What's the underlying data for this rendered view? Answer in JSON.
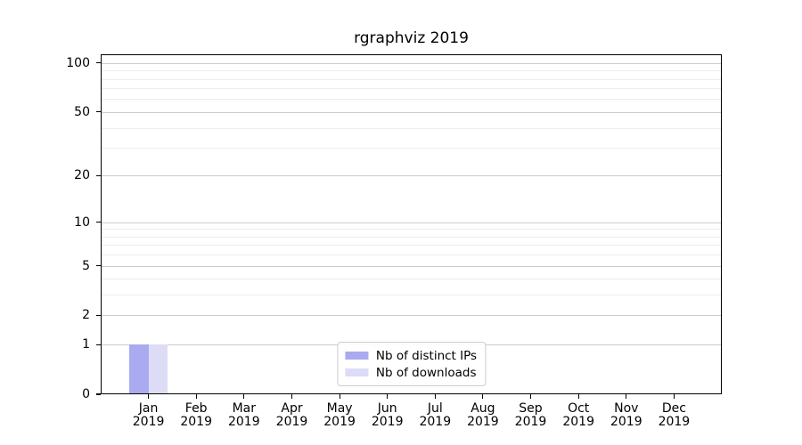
{
  "chart_data": {
    "type": "bar",
    "title": "rgraphviz 2019",
    "categories": [
      "Jan",
      "Feb",
      "Mar",
      "Apr",
      "May",
      "Jun",
      "Jul",
      "Aug",
      "Sep",
      "Oct",
      "Nov",
      "Dec"
    ],
    "category_year": "2019",
    "series": [
      {
        "name": "Nb of distinct IPs",
        "color": "#aaaaf0",
        "values": [
          1,
          0,
          0,
          0,
          0,
          0,
          0,
          0,
          0,
          0,
          0,
          0
        ]
      },
      {
        "name": "Nb of downloads",
        "color": "#dcdcf6",
        "values": [
          1,
          0,
          0,
          0,
          0,
          0,
          0,
          0,
          0,
          0,
          0,
          0
        ]
      }
    ],
    "xlabel": "",
    "ylabel": "",
    "yscale": "log1p",
    "ylim": [
      0,
      113
    ],
    "y_major_ticks": [
      0,
      1,
      2,
      5,
      10,
      20,
      50,
      100
    ],
    "y_minor_ticks": [
      3,
      4,
      6,
      7,
      8,
      9,
      30,
      40,
      60,
      70,
      80,
      90
    ],
    "grid": "on",
    "legend_position": "lower center",
    "style": {
      "major_grid_color": "#cccccc",
      "minor_grid_color": "#ececec",
      "spine_color": "#000000",
      "background": "#ffffff"
    }
  }
}
